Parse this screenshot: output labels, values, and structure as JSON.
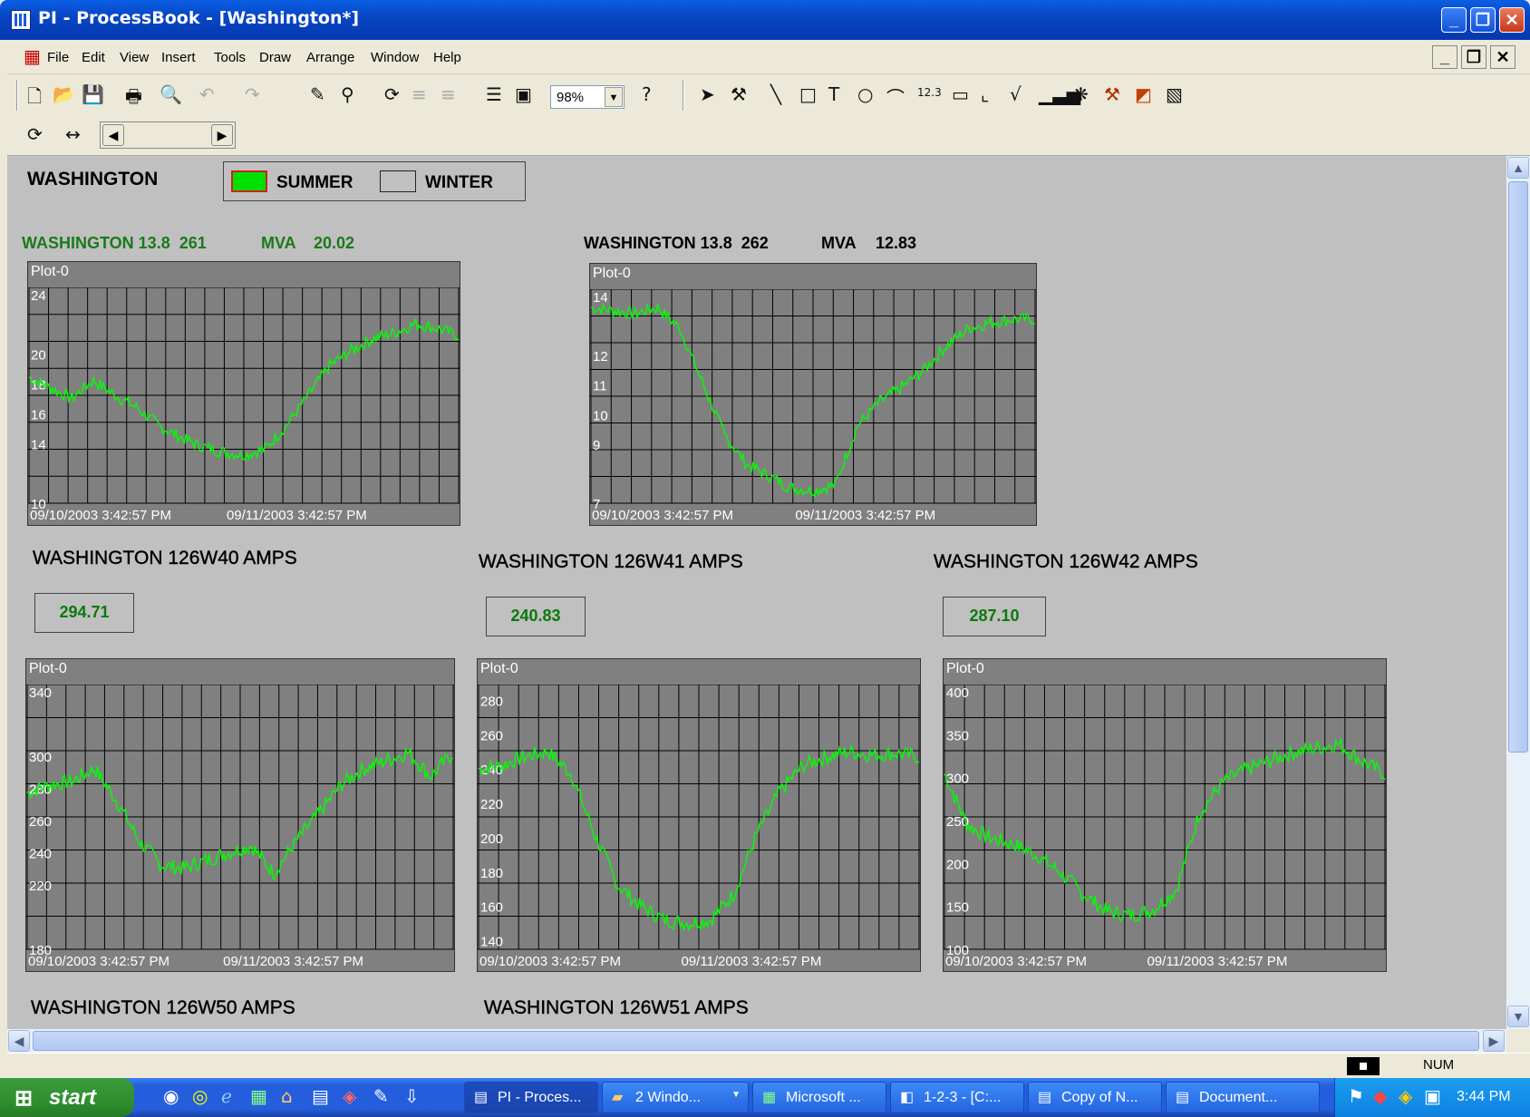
{
  "window": {
    "title": "PI - ProcessBook - [Washington*]"
  },
  "menu": [
    "File",
    "Edit",
    "View",
    "Insert",
    "Tools",
    "Draw",
    "Arrange",
    "Window",
    "Help"
  ],
  "toolbar": {
    "zoom": "98%"
  },
  "display": {
    "title": "WASHINGTON",
    "season": {
      "summer": "SUMMER",
      "winter": "WINTER",
      "active": "summer",
      "active_color": "#00e000"
    },
    "transformers": [
      {
        "name": "WASHINGTON 13.8  261",
        "unit": "MVA",
        "value": "20.02",
        "color": "#1a7a1a"
      },
      {
        "name": "WASHINGTON 13.8  262",
        "unit": "MVA",
        "value": "12.83",
        "color": "#000000"
      }
    ],
    "amps": [
      {
        "name": "WASHINGTON 126W40 AMPS",
        "value": "294.71"
      },
      {
        "name": "WASHINGTON 126W41 AMPS",
        "value": "240.83"
      },
      {
        "name": "WASHINGTON 126W42 AMPS",
        "value": "287.10"
      }
    ],
    "amps_below": [
      "WASHINGTON 126W50 AMPS",
      "WASHINGTON 126W51 AMPS"
    ]
  },
  "chart_data": [
    {
      "type": "line",
      "title": "Plot-0",
      "x_start": "09/10/2003 3:42:57 PM",
      "x_end": "09/11/2003 3:42:57 PM",
      "yticks": [
        "24",
        "20",
        "18",
        "16",
        "14",
        "10"
      ],
      "ylim": [
        10,
        24
      ],
      "series": [
        {
          "values": [
            18.2,
            17.5,
            16.8,
            18,
            17,
            16.2,
            15,
            14.2,
            13.6,
            13.2,
            13.0,
            13.4,
            15,
            17,
            19,
            20,
            20.8,
            21.2,
            21.8,
            21.5,
            21
          ]
        }
      ]
    },
    {
      "type": "line",
      "title": "Plot-0",
      "x_start": "09/10/2003 3:42:57 PM",
      "x_end": "09/11/2003 3:42:57 PM",
      "yticks": [
        "14",
        "12",
        "11",
        "10",
        "9",
        "7"
      ],
      "ylim": [
        7,
        14
      ],
      "series": [
        {
          "values": [
            13.5,
            13.4,
            13.3,
            13.5,
            12.8,
            11,
            9.2,
            8.2,
            7.8,
            7.4,
            7.3,
            7.5,
            9.5,
            10.3,
            10.8,
            11.4,
            12.2,
            12.8,
            13,
            13.1,
            13.1
          ]
        }
      ]
    },
    {
      "type": "line",
      "title": "Plot-0",
      "x_start": "09/10/2003 3:42:57 PM",
      "x_end": "09/11/2003 3:42:57 PM",
      "yticks": [
        "340",
        "300",
        "280",
        "260",
        "240",
        "220",
        "180"
      ],
      "ylim": [
        180,
        340
      ],
      "series": [
        {
          "values": [
            275,
            280,
            282,
            290,
            270,
            245,
            230,
            228,
            233,
            238,
            242,
            225,
            245,
            262,
            280,
            290,
            295,
            300,
            285,
            300
          ]
        }
      ]
    },
    {
      "type": "line",
      "title": "Plot-0",
      "x_start": "09/10/2003 3:42:57 PM",
      "x_end": "09/11/2003 3:42:57 PM",
      "yticks": [
        "280",
        "260",
        "240",
        "220",
        "200",
        "180",
        "160",
        "140"
      ],
      "ylim": [
        135,
        285
      ],
      "series": [
        {
          "values": [
            238,
            240,
            245,
            248,
            235,
            200,
            170,
            158,
            150,
            148,
            150,
            165,
            200,
            225,
            240,
            245,
            248,
            246,
            247,
            245
          ]
        }
      ]
    },
    {
      "type": "line",
      "title": "Plot-0",
      "x_start": "09/10/2003 3:42:57 PM",
      "x_end": "09/11/2003 3:42:57 PM",
      "yticks": [
        "400",
        "350",
        "300",
        "250",
        "200",
        "150",
        "100"
      ],
      "ylim": [
        100,
        400
      ],
      "series": [
        {
          "values": [
            300,
            240,
            225,
            218,
            205,
            185,
            160,
            140,
            135,
            142,
            165,
            255,
            290,
            305,
            315,
            325,
            330,
            335,
            315,
            300
          ]
        }
      ]
    }
  ],
  "statusbar": {
    "num": "NUM"
  },
  "taskbar": {
    "start": "start",
    "items": [
      "PI - Proces...",
      "2 Windo...",
      "Microsoft ...",
      "1-2-3 - [C:...",
      "Copy of N...",
      "Document..."
    ],
    "clock": "3:44 PM"
  }
}
